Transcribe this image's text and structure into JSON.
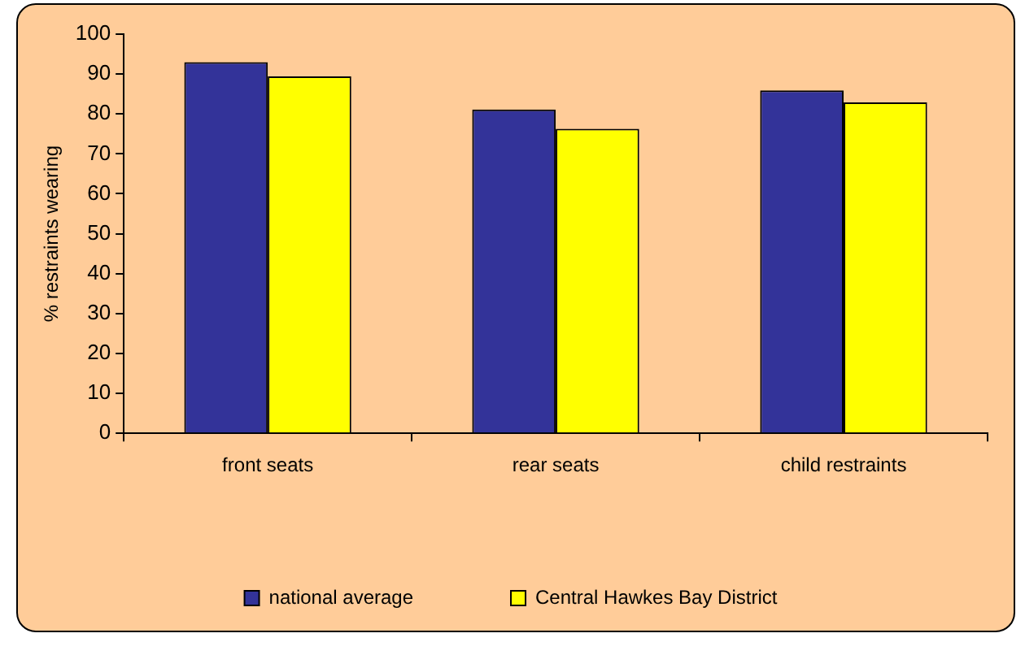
{
  "chart_data": {
    "type": "bar",
    "ylabel": "% restraints wearing",
    "categories": [
      "front seats",
      "rear seats",
      "child restraints"
    ],
    "series": [
      {
        "name": "national average",
        "color": "#333399",
        "values": [
          93,
          81.1,
          85.9
        ]
      },
      {
        "name": "Central Hawkes Bay District",
        "color": "#ffff00",
        "values": [
          89.4,
          76.3,
          82.9
        ]
      }
    ],
    "ylim": [
      0,
      100
    ],
    "yticks": [
      0,
      10,
      20,
      30,
      40,
      50,
      60,
      70,
      80,
      90,
      100
    ],
    "grid": false,
    "legend": "bottom"
  }
}
